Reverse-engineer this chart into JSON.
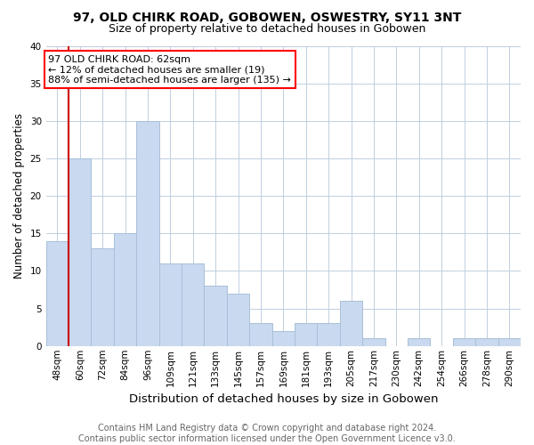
{
  "title": "97, OLD CHIRK ROAD, GOBOWEN, OSWESTRY, SY11 3NT",
  "subtitle": "Size of property relative to detached houses in Gobowen",
  "xlabel": "Distribution of detached houses by size in Gobowen",
  "ylabel": "Number of detached properties",
  "footer_line1": "Contains HM Land Registry data © Crown copyright and database right 2024.",
  "footer_line2": "Contains public sector information licensed under the Open Government Licence v3.0.",
  "categories": [
    "48sqm",
    "60sqm",
    "72sqm",
    "84sqm",
    "96sqm",
    "109sqm",
    "121sqm",
    "133sqm",
    "145sqm",
    "157sqm",
    "169sqm",
    "181sqm",
    "193sqm",
    "205sqm",
    "217sqm",
    "230sqm",
    "242sqm",
    "254sqm",
    "266sqm",
    "278sqm",
    "290sqm"
  ],
  "values": [
    14,
    25,
    13,
    15,
    30,
    11,
    11,
    8,
    7,
    3,
    2,
    3,
    3,
    6,
    1,
    0,
    1,
    0,
    1,
    1,
    1
  ],
  "bar_color": "#c9d9ef",
  "bar_edge_color": "#a8c0d8",
  "ylim": [
    0,
    40
  ],
  "yticks": [
    0,
    5,
    10,
    15,
    20,
    25,
    30,
    35,
    40
  ],
  "red_line_index": 1,
  "annotation_text_line1": "97 OLD CHIRK ROAD: 62sqm",
  "annotation_text_line2": "← 12% of detached houses are smaller (19)",
  "annotation_text_line3": "88% of semi-detached houses are larger (135) →",
  "annotation_box_color": "white",
  "annotation_box_edge_color": "red",
  "red_line_color": "#cc0000",
  "grid_color": "#c0cfe0",
  "background_color": "white",
  "title_fontsize": 10,
  "subtitle_fontsize": 9,
  "xlabel_fontsize": 9.5,
  "ylabel_fontsize": 8.5,
  "tick_fontsize": 7.5,
  "annotation_fontsize": 8,
  "footer_fontsize": 7
}
